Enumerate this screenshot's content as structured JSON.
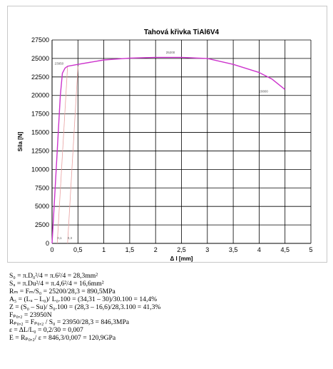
{
  "chart_data": {
    "type": "line",
    "title": "Tahová křivka TiAl6V4",
    "xlabel": "Δ l [mm]",
    "ylabel": "Síla [N]",
    "xlim": [
      0,
      5
    ],
    "ylim": [
      0,
      27500
    ],
    "x_ticks": [
      "0",
      "0,5",
      "1",
      "1,5",
      "2",
      "2,5",
      "3",
      "3,5",
      "4",
      "4,5",
      "5"
    ],
    "y_ticks": [
      "0",
      "2500",
      "5000",
      "7500",
      "10000",
      "12500",
      "15000",
      "17500",
      "20000",
      "22500",
      "25000",
      "27500"
    ],
    "grid": true,
    "series": [
      {
        "color": "#cc33cc",
        "x": [
          0,
          0.04,
          0.08,
          0.12,
          0.16,
          0.2,
          0.25,
          0.3,
          0.5,
          1.0,
          1.5,
          2.0,
          2.5,
          3.0,
          3.5,
          4.0,
          4.25,
          4.5
        ],
        "y": [
          0,
          5000,
          10000,
          15000,
          20000,
          23000,
          23700,
          23950,
          24200,
          24800,
          25050,
          25150,
          25150,
          25000,
          24200,
          23100,
          22200,
          20800
        ]
      }
    ],
    "offset_lines": [
      {
        "color": "#e8a0a0",
        "x": [
          0.1,
          0.3
        ],
        "y": [
          0,
          23950
        ]
      },
      {
        "color": "#e8a0a0",
        "x": [
          0.3,
          0.5
        ],
        "y": [
          0,
          23950
        ]
      }
    ],
    "annotations": [
      {
        "text": "25200",
        "x": 2.2,
        "y": 25650
      },
      {
        "text": "23950",
        "x": 0.05,
        "y": 24150
      },
      {
        "text": "20800",
        "x": 4.0,
        "y": 20400
      },
      {
        "text": "0,1",
        "x": 0.1,
        "y": 600
      },
      {
        "text": "0,3",
        "x": 0.3,
        "y": 600
      }
    ]
  },
  "calculations": [
    {
      "text": "S₀ = π.D₀²/4 = π.6²/4 = 28,3mm²"
    },
    {
      "text": "Sᵤ = π.Du²/4 = π.4,6²/4 = 16,6mm²"
    },
    {
      "text": "Rₘ = Fₘ/S₀ = 25200/28,3 = 890,5MPa"
    },
    {
      "text": "A₅ = (Lᵤ – L₀)/ L₀.100 = (34,31 – 30)/30.100 = 14,4%"
    },
    {
      "text": "Z = (S₀ – Su)/ S₀.100 = (28,3 – 16,6)/28,3.100 = 41,3%"
    },
    {
      "text": "Fₚ₀,₂ = 23950N"
    },
    {
      "text": "Rₚ₀,₂ = Fₚ₀,₂ / S₀ = 23950/28,3 = 846,3MPa"
    },
    {
      "text": "ε = ΔL/L₀ = 0,2/30 = 0,007"
    },
    {
      "text": "E = Rₚ₀,₂/ ε = 846,3/0,007 = 120,9GPa"
    }
  ]
}
